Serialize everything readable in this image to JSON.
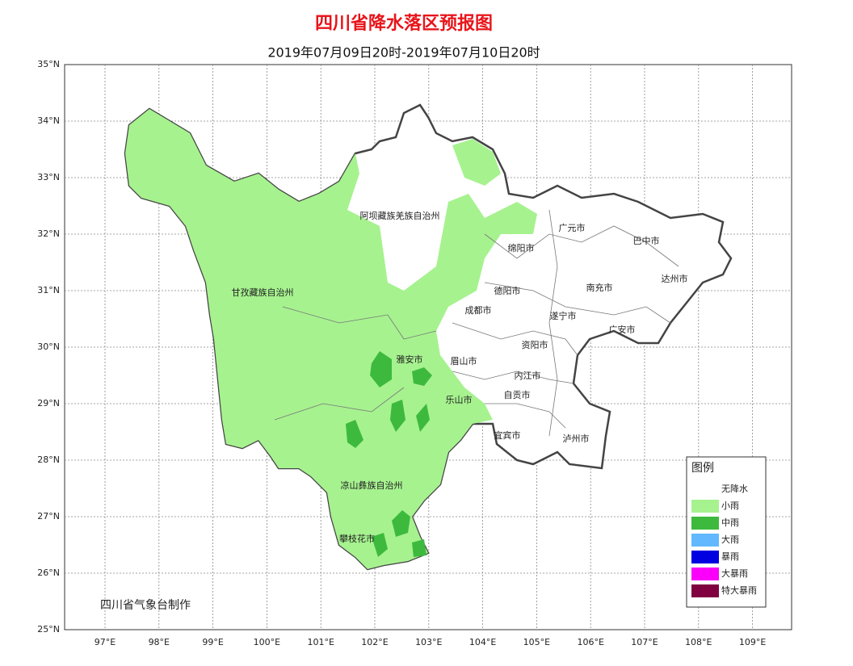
{
  "header": {
    "title": "四川省降水落区预报图",
    "subtitle": "2019年07月09日20时-2019年07月10日20时"
  },
  "axes": {
    "lat_labels": [
      "35°N",
      "34°N",
      "33°N",
      "32°N",
      "31°N",
      "30°N",
      "29°N",
      "28°N",
      "27°N",
      "26°N",
      "25°N"
    ],
    "lon_labels": [
      "97°E",
      "98°E",
      "99°E",
      "100°E",
      "101°E",
      "102°E",
      "103°E",
      "104°E",
      "105°E",
      "106°E",
      "107°E",
      "108°E",
      "109°E"
    ]
  },
  "places": [
    {
      "label": "阿坝藏族羌族自治州"
    },
    {
      "label": "广元市"
    },
    {
      "label": "巴中市"
    },
    {
      "label": "绵阳市"
    },
    {
      "label": "甘孜藏族自治州"
    },
    {
      "label": "达州市"
    },
    {
      "label": "德阳市"
    },
    {
      "label": "南充市"
    },
    {
      "label": "成都市"
    },
    {
      "label": "遂宁市"
    },
    {
      "label": "广安市"
    },
    {
      "label": "资阳市"
    },
    {
      "label": "雅安市"
    },
    {
      "label": "眉山市"
    },
    {
      "label": "内江市"
    },
    {
      "label": "自贡市"
    },
    {
      "label": "乐山市"
    },
    {
      "label": "宜宾市"
    },
    {
      "label": "泸州市"
    },
    {
      "label": "凉山彝族自治州"
    },
    {
      "label": "攀枝花市"
    }
  ],
  "legend": {
    "title": "图例",
    "items": [
      {
        "label": "无降水",
        "color": "#ffffff"
      },
      {
        "label": "小雨",
        "color": "#a6f28f"
      },
      {
        "label": "中雨",
        "color": "#3dba3d"
      },
      {
        "label": "大雨",
        "color": "#61b8ff"
      },
      {
        "label": "暴雨",
        "color": "#0000e1"
      },
      {
        "label": "大暴雨",
        "color": "#fa00fa"
      },
      {
        "label": "特大暴雨",
        "color": "#800040"
      }
    ]
  },
  "credit": "四川省气象台制作"
}
